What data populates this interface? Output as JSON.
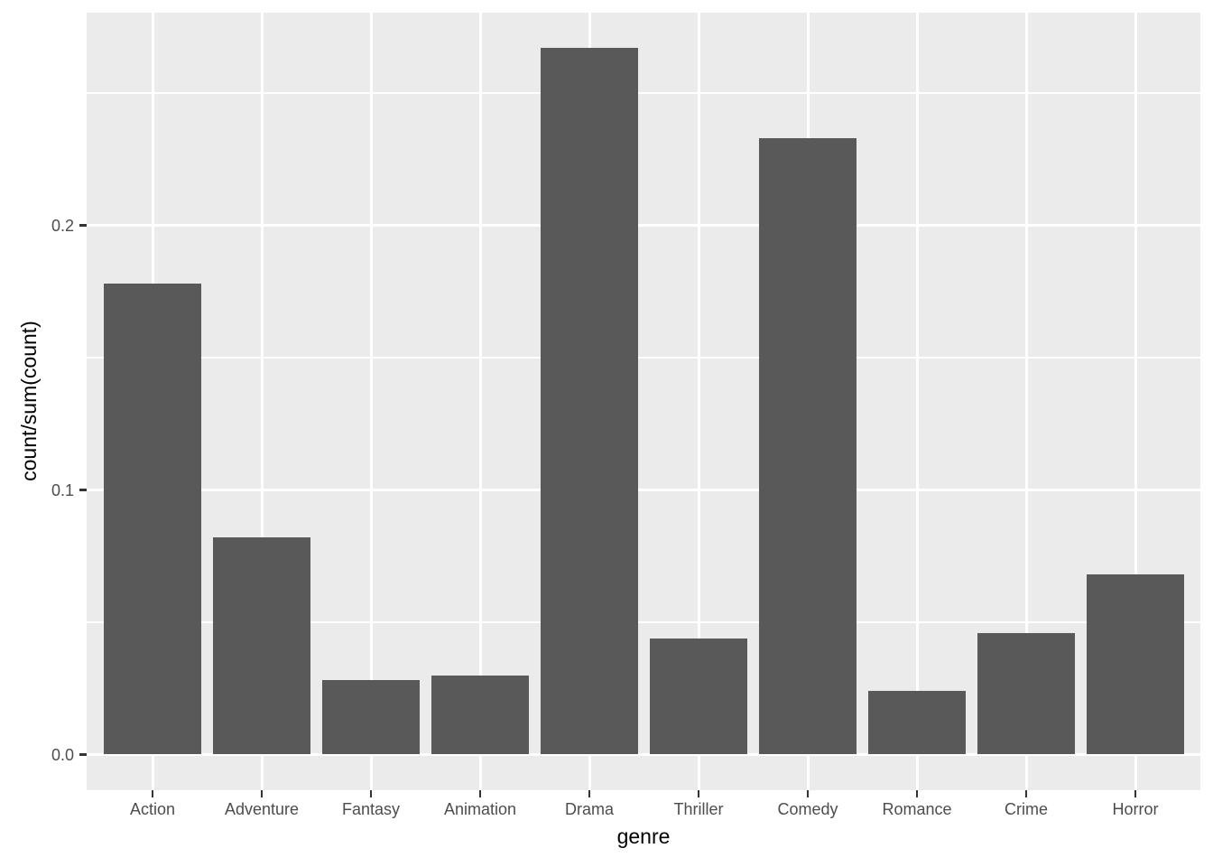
{
  "figure": {
    "background": "#FFFFFF",
    "panel_background": "#EBEBEB",
    "grid_color": "#FFFFFF",
    "bar_color": "#595959",
    "axis_text_color": "#4D4D4D",
    "axis_title_color": "#000000",
    "tick_mark_color": "#333333"
  },
  "chart_data": {
    "type": "bar",
    "title": "",
    "xlabel": "genre",
    "ylabel": "count/sum(count)",
    "categories": [
      "Action",
      "Adventure",
      "Fantasy",
      "Animation",
      "Drama",
      "Thriller",
      "Comedy",
      "Romance",
      "Crime",
      "Horror"
    ],
    "values": [
      0.178,
      0.082,
      0.028,
      0.03,
      0.267,
      0.044,
      0.233,
      0.024,
      0.046,
      0.068
    ],
    "y_ticks": [
      0.0,
      0.1,
      0.2
    ],
    "y_tick_labels": [
      "0.0",
      "0.1",
      "0.2"
    ],
    "y_minor_ticks": [
      0.05,
      0.15,
      0.25
    ],
    "ylim": [
      -0.0134,
      0.2806
    ],
    "grid": true,
    "legend_position": "none",
    "bar_relative_width": 0.9
  }
}
